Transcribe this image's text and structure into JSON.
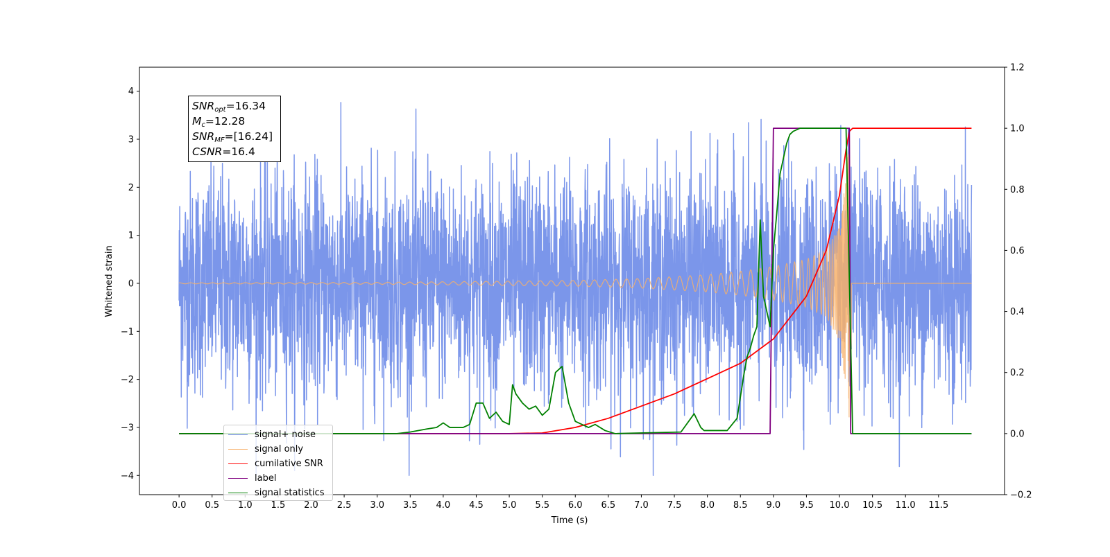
{
  "chart_data": {
    "type": "line",
    "xlabel": "Time (s)",
    "ylabel_left": "Whitened strain",
    "ylabel_right": "",
    "xlim": [
      -0.6,
      12.5
    ],
    "ylim_left": [
      -4.4,
      4.5
    ],
    "ylim_right": [
      -0.2,
      1.2
    ],
    "x_ticks": [
      0.0,
      0.5,
      1.0,
      1.5,
      2.0,
      2.5,
      3.0,
      3.5,
      4.0,
      4.5,
      5.0,
      5.5,
      6.0,
      6.5,
      7.0,
      7.5,
      8.0,
      8.5,
      9.0,
      9.5,
      10.0,
      10.5,
      11.0,
      11.5
    ],
    "x_tick_labels": [
      "0.0",
      "0.5",
      "1.0",
      "1.5",
      "2.0",
      "2.5",
      "3.0",
      "3.5",
      "4.0",
      "4.5",
      "5.0",
      "5.5",
      "6.0",
      "6.5",
      "7.0",
      "7.5",
      "8.0",
      "8.5",
      "9.0",
      "9.5",
      "10.0",
      "10.5",
      "11.0",
      "11.5"
    ],
    "y_left_ticks": [
      -4,
      -3,
      -2,
      -1,
      0,
      1,
      2,
      3,
      4
    ],
    "y_left_tick_labels": [
      "−4",
      "−3",
      "−2",
      "−1",
      "0",
      "1",
      "2",
      "3",
      "4"
    ],
    "y_right_ticks": [
      -0.2,
      0.0,
      0.2,
      0.4,
      0.6,
      0.8,
      1.0,
      1.2
    ],
    "y_right_tick_labels": [
      "−0.2",
      "0.0",
      "0.2",
      "0.4",
      "0.6",
      "0.8",
      "1.0",
      "1.2"
    ],
    "grid": false,
    "legend_position": "lower-left",
    "annotation": {
      "snr_opt_label": "SNR",
      "snr_opt_sub": "opt",
      "snr_opt_value": "=16.34",
      "mc_label": "M",
      "mc_sub": "c",
      "mc_value": "=12.28",
      "snr_mf_label": "SNR",
      "snr_mf_sub": "MF",
      "snr_mf_value": "=[16.24]",
      "csnr_label": "CSNR",
      "csnr_value": "=16.4"
    },
    "series": [
      {
        "name": "signal+ noise",
        "axis": "left",
        "color": "#7b96ea",
        "description_of_values": "approximately unit-variance whitened noise from t=0.0 to 12.0 s with peaks reaching about 4.1 and troughs to about -4.0"
      },
      {
        "name": "signal only",
        "axis": "left",
        "color": "#f7b06a",
        "x": [
          0.0,
          3.0,
          6.0,
          7.0,
          8.0,
          8.5,
          9.0,
          9.5,
          9.8,
          10.0,
          10.1,
          10.15,
          10.2,
          12.0
        ],
        "envelope": [
          0.01,
          0.02,
          0.06,
          0.1,
          0.18,
          0.25,
          0.35,
          0.5,
          0.7,
          1.2,
          2.2,
          3.0,
          0.02,
          0.01
        ]
      },
      {
        "name": "cumilative SNR",
        "axis": "right",
        "color": "#ff0000",
        "x": [
          0.0,
          5.0,
          5.5,
          6.0,
          6.5,
          7.0,
          7.5,
          8.0,
          8.5,
          9.0,
          9.5,
          9.8,
          10.0,
          10.1,
          10.15,
          10.2,
          12.0
        ],
        "y": [
          0.0,
          0.0,
          0.002,
          0.02,
          0.05,
          0.09,
          0.13,
          0.18,
          0.23,
          0.31,
          0.45,
          0.6,
          0.78,
          0.93,
          0.99,
          1.0,
          1.0
        ]
      },
      {
        "name": "label",
        "axis": "right",
        "color": "#800080",
        "x": [
          0.0,
          8.95,
          9.0,
          10.15,
          10.17,
          12.0
        ],
        "y": [
          0.0,
          0.0,
          1.0,
          1.0,
          0.0,
          0.0
        ]
      },
      {
        "name": "signal statistics",
        "axis": "right",
        "color": "#008000",
        "x": [
          0.0,
          3.3,
          3.5,
          3.75,
          3.9,
          4.0,
          4.1,
          4.3,
          4.4,
          4.5,
          4.6,
          4.7,
          4.8,
          4.9,
          5.0,
          5.05,
          5.1,
          5.2,
          5.3,
          5.4,
          5.5,
          5.6,
          5.7,
          5.75,
          5.8,
          5.9,
          6.0,
          6.2,
          6.3,
          6.45,
          6.6,
          7.6,
          7.8,
          7.9,
          7.95,
          8.0,
          8.1,
          8.3,
          8.45,
          8.55,
          8.6,
          8.65,
          8.7,
          8.75,
          8.8,
          8.85,
          8.95,
          9.0,
          9.05,
          9.1,
          9.15,
          9.2,
          9.25,
          9.3,
          9.4,
          9.5,
          9.6,
          9.75,
          10.0,
          10.1,
          10.15,
          10.2,
          12.0
        ],
        "y": [
          0.0,
          0.0,
          0.005,
          0.015,
          0.02,
          0.035,
          0.02,
          0.02,
          0.03,
          0.1,
          0.1,
          0.05,
          0.07,
          0.04,
          0.03,
          0.16,
          0.13,
          0.1,
          0.08,
          0.09,
          0.06,
          0.08,
          0.2,
          0.21,
          0.22,
          0.1,
          0.04,
          0.02,
          0.03,
          0.01,
          0.0,
          0.005,
          0.065,
          0.02,
          0.01,
          0.01,
          0.01,
          0.01,
          0.05,
          0.19,
          0.25,
          0.28,
          0.32,
          0.35,
          0.7,
          0.45,
          0.35,
          0.6,
          0.72,
          0.85,
          0.9,
          0.95,
          0.98,
          0.99,
          1.0,
          1.0,
          1.0,
          1.0,
          1.0,
          1.0,
          0.5,
          0.0,
          0.0
        ]
      }
    ]
  }
}
